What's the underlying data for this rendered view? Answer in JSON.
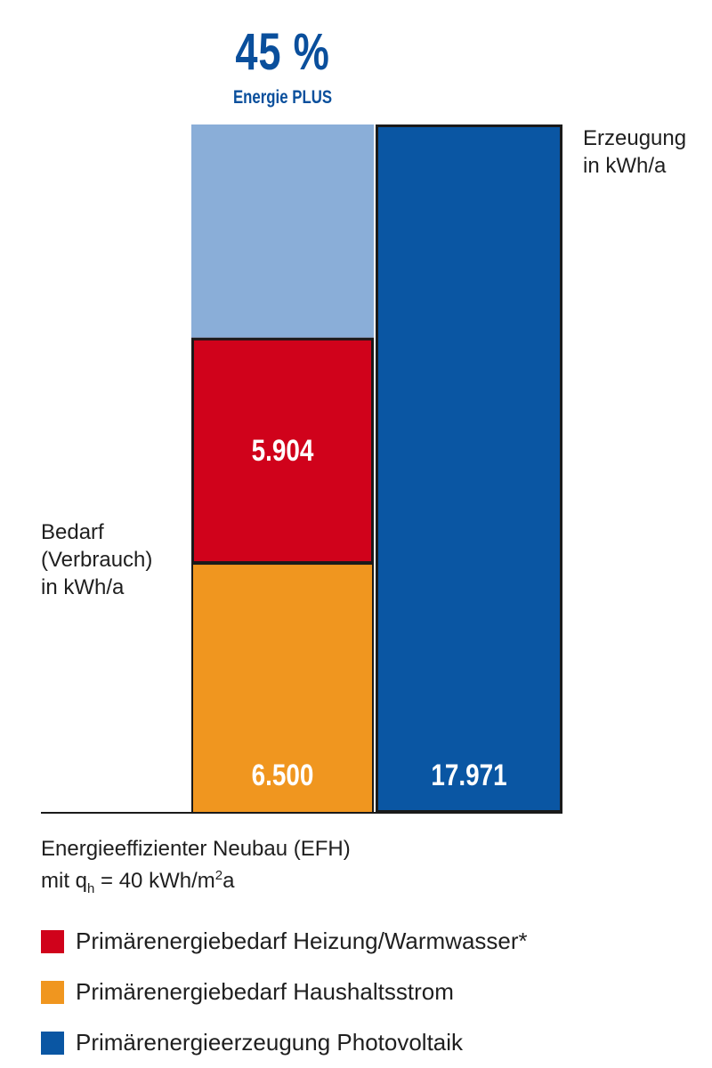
{
  "chart_data": {
    "type": "bar",
    "stacked": true,
    "categories": [
      "Bedarf",
      "Erzeugung"
    ],
    "series": [
      {
        "name": "Primärenergiebedarf Haushaltsstrom",
        "color": "#f0961f",
        "values": [
          6500,
          0
        ],
        "labels": [
          "6.500",
          ""
        ]
      },
      {
        "name": "Primärenergiebedarf Heizung/Warmwasser*",
        "color": "#d0021b",
        "values": [
          5904,
          0
        ],
        "labels": [
          "5.904",
          ""
        ]
      },
      {
        "name": "Energie PLUS",
        "color": "#8aaed8",
        "values": [
          5567,
          0
        ],
        "labels": [
          "",
          ""
        ]
      },
      {
        "name": "Primärenergieerzeugung Photovoltaik",
        "color": "#0a56a3",
        "values": [
          0,
          17971
        ],
        "labels": [
          "",
          "17.971"
        ]
      }
    ],
    "highlight": {
      "value": "45 %",
      "label": "Energie PLUS"
    },
    "ylim": [
      0,
      17971
    ],
    "grid": false,
    "legend_position": "bottom-left"
  },
  "labels": {
    "demand": [
      "Bedarf",
      "(Verbrauch)",
      "in kWh/a"
    ],
    "production": [
      "Erzeugung",
      "in kWh/a"
    ]
  },
  "caption": {
    "line1": "Energieeffizienter Neubau (EFH)",
    "line2_prefix": "mit q",
    "line2_sub": "h",
    "line2_mid": " = 40 kWh/m",
    "line2_sup": "2",
    "line2_suffix": "a"
  },
  "legend": [
    {
      "label": "Primärenergiebedarf Heizung/Warmwasser*",
      "color": "#d0021b"
    },
    {
      "label": "Primärenergiebedarf Haushaltsstrom",
      "color": "#f0961f"
    },
    {
      "label": "Primärenergieerzeugung Photovoltaik",
      "color": "#0a56a3"
    }
  ]
}
